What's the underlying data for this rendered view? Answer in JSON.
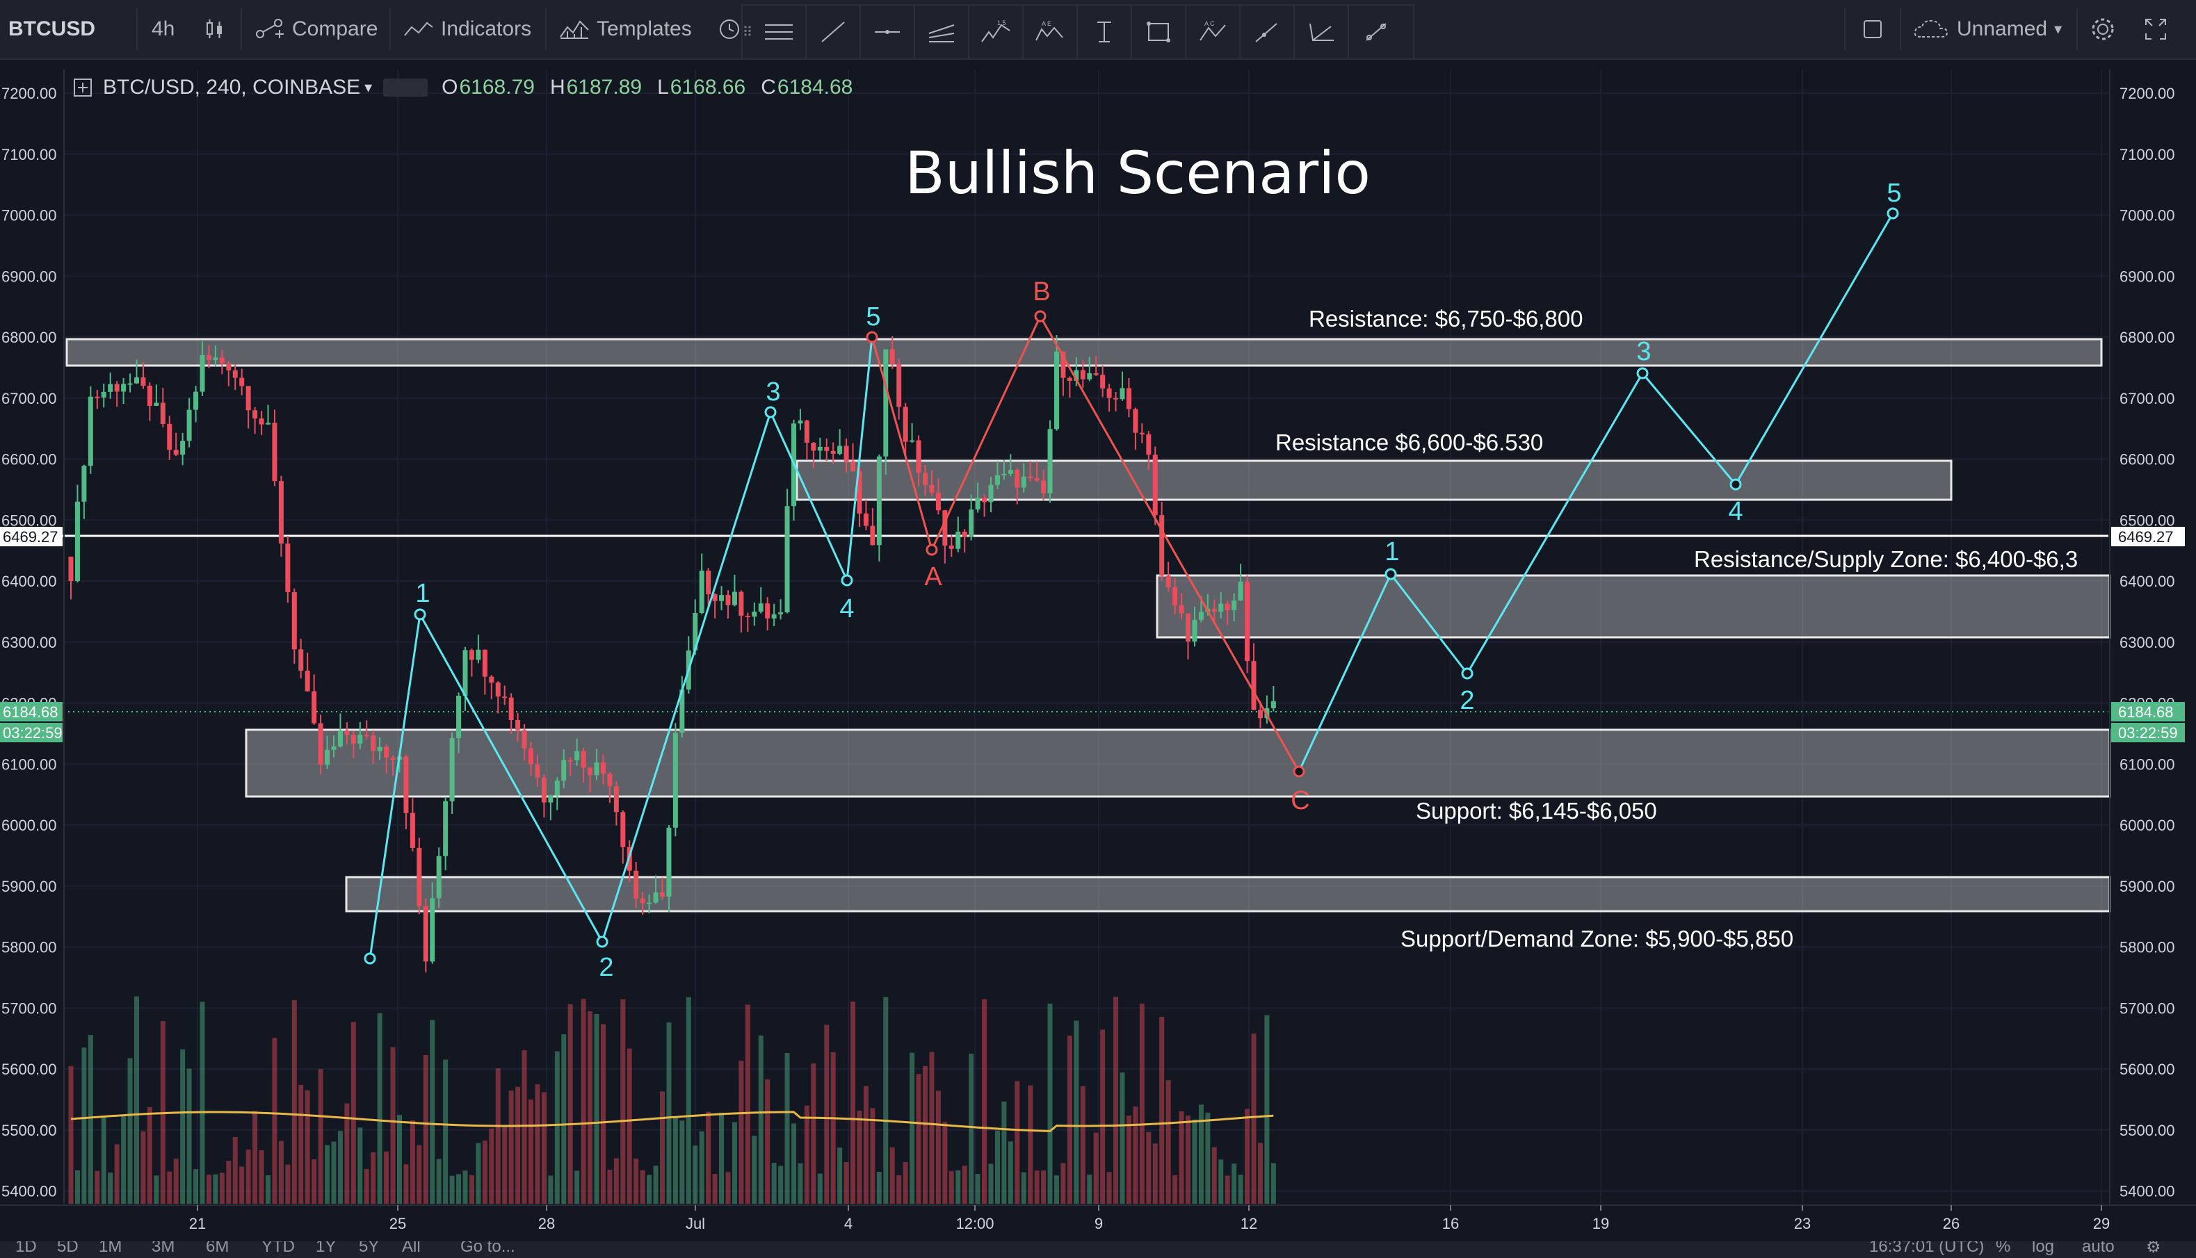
{
  "toolbar": {
    "symbol": "BTCUSD",
    "interval": "4h",
    "compare_label": "Compare",
    "indicators_label": "Indicators",
    "templates_label": "Templates",
    "layout_name": "Unnamed"
  },
  "legend": {
    "title": "BTC/USD, 240, COINBASE",
    "open_key": "O",
    "open": "6168.79",
    "high_key": "H",
    "high": "6187.89",
    "low_key": "L",
    "low": "6168.66",
    "close_key": "C",
    "close": "6184.68"
  },
  "colors": {
    "up": "#53b987",
    "down": "#eb4d5c",
    "bg": "#131722",
    "wave_cyan": "#5ce6f0",
    "wave_red": "#ef5350",
    "volume_ma": "#e8b94a"
  },
  "price_axis": {
    "ticks": [
      "7200.00",
      "7100.00",
      "7000.00",
      "6900.00",
      "6800.00",
      "6700.00",
      "6600.00",
      "6500.00",
      "6400.00",
      "6300.00",
      "6200.00",
      "6100.00",
      "6000.00",
      "5900.00",
      "5800.00",
      "5700.00",
      "5600.00",
      "5500.00",
      "5400.00"
    ],
    "horizontal_line_label": "6469.27",
    "last_price_label": "6184.68",
    "countdown_label": "03:22:59"
  },
  "time_axis": {
    "ticks": [
      "21",
      "25",
      "28",
      "Jul",
      "4",
      "12:00",
      "9",
      "12",
      "16",
      "19",
      "23",
      "26",
      "29"
    ]
  },
  "chart_title": "Bullish Scenario",
  "zones": [
    {
      "label": "Resistance: $6,750-$6,800"
    },
    {
      "label": "Resistance $6,600-$6.530"
    },
    {
      "label": "Resistance/Supply Zone: $6,400-$6,3"
    },
    {
      "label": "Support: $6,145-$6,050"
    },
    {
      "label": "Support/Demand Zone: $5,900-$5,850"
    }
  ],
  "wave_labels_past": [
    "1",
    "2",
    "3",
    "4",
    "5"
  ],
  "abc_labels": [
    "A",
    "B",
    "C"
  ],
  "wave_labels_projected": [
    "1",
    "2",
    "3",
    "4",
    "5"
  ],
  "bottom_bar": {
    "ranges": [
      "1D",
      "5D",
      "1M",
      "3M",
      "6M",
      "YTD",
      "1Y",
      "5Y",
      "All"
    ],
    "goto": "Go to...",
    "clock": "16:37:01 (UTC)",
    "percent": "%",
    "log": "log",
    "auto": "auto"
  }
}
